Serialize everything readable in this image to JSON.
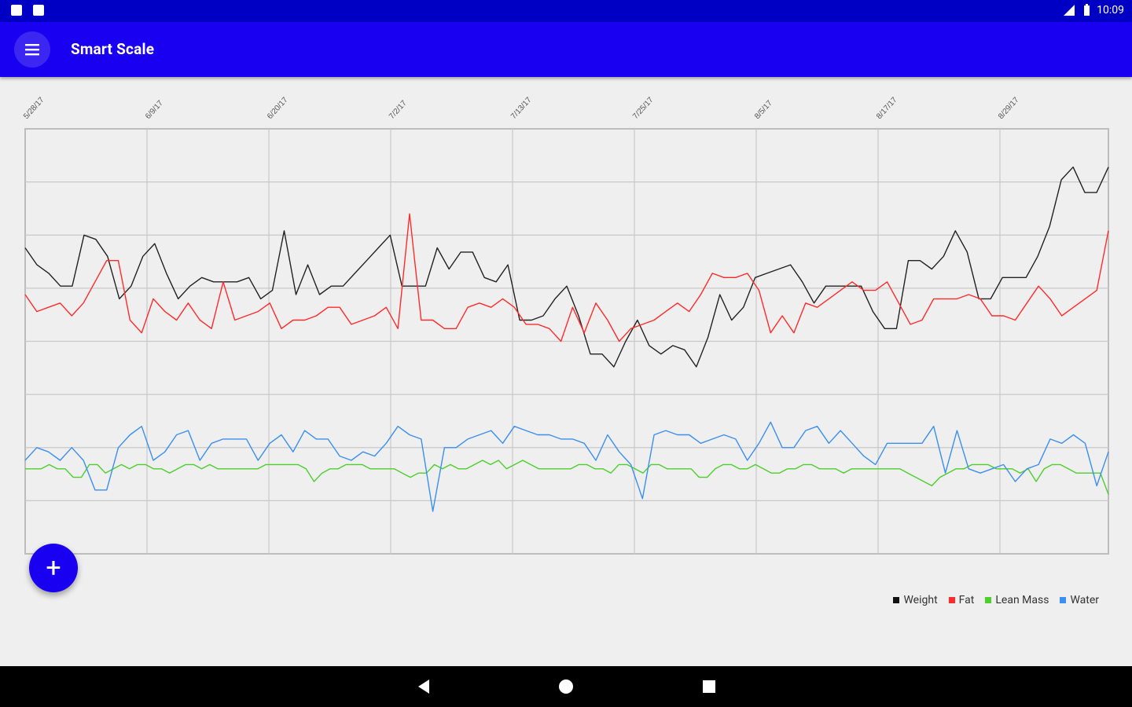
{
  "status_bar": {
    "time": "10:09",
    "icons": [
      "sim-icon",
      "notification-icon",
      "signal-icon",
      "battery-icon"
    ]
  },
  "app_bar": {
    "title": "Smart Scale",
    "menu_icon": "menu-icon"
  },
  "fab": {
    "label": "+",
    "icon": "add-icon"
  },
  "nav_bar": {
    "icons": [
      "back-icon",
      "home-icon",
      "recents-icon"
    ]
  },
  "chart_data": {
    "type": "line",
    "x_tick_labels": [
      "5/28/17",
      "6/9/17",
      "6/20/17",
      "7/2/17",
      "7/13/17",
      "7/25/17",
      "8/5/17",
      "8/17/17",
      "8/29/17"
    ],
    "grid": true,
    "legend_position": "bottom-right",
    "series": [
      {
        "name": "Weight",
        "color": "#222222",
        "values": [
          0.28,
          0.32,
          0.34,
          0.37,
          0.37,
          0.25,
          0.26,
          0.3,
          0.4,
          0.37,
          0.3,
          0.27,
          0.34,
          0.4,
          0.37,
          0.35,
          0.36,
          0.36,
          0.36,
          0.35,
          0.4,
          0.38,
          0.24,
          0.39,
          0.32,
          0.39,
          0.37,
          0.37,
          0.34,
          0.31,
          0.28,
          0.25,
          0.37,
          0.37,
          0.37,
          0.28,
          0.33,
          0.29,
          0.29,
          0.35,
          0.36,
          0.32,
          0.45,
          0.45,
          0.44,
          0.4,
          0.37,
          0.44,
          0.53,
          0.53,
          0.56,
          0.5,
          0.45,
          0.51,
          0.53,
          0.51,
          0.52,
          0.56,
          0.49,
          0.39,
          0.45,
          0.42,
          0.35,
          0.34,
          0.33,
          0.32,
          0.36,
          0.41,
          0.37,
          0.37,
          0.37,
          0.37,
          0.43,
          0.47,
          0.47,
          0.31,
          0.31,
          0.33,
          0.3,
          0.24,
          0.29,
          0.4,
          0.4,
          0.35,
          0.35,
          0.35,
          0.3,
          0.23,
          0.12,
          0.09,
          0.15,
          0.15,
          0.09
        ]
      },
      {
        "name": "Fat",
        "color": "#ff2a2a",
        "values": [
          0.39,
          0.43,
          0.42,
          0.41,
          0.44,
          0.41,
          0.36,
          0.31,
          0.31,
          0.45,
          0.48,
          0.4,
          0.43,
          0.45,
          0.41,
          0.45,
          0.47,
          0.36,
          0.45,
          0.44,
          0.43,
          0.41,
          0.47,
          0.45,
          0.45,
          0.44,
          0.42,
          0.42,
          0.46,
          0.45,
          0.44,
          0.42,
          0.47,
          0.2,
          0.45,
          0.45,
          0.47,
          0.47,
          0.42,
          0.41,
          0.42,
          0.4,
          0.42,
          0.46,
          0.46,
          0.47,
          0.5,
          0.42,
          0.48,
          0.41,
          0.45,
          0.5,
          0.47,
          0.46,
          0.45,
          0.43,
          0.41,
          0.43,
          0.39,
          0.34,
          0.35,
          0.35,
          0.34,
          0.38,
          0.48,
          0.44,
          0.48,
          0.41,
          0.42,
          0.4,
          0.38,
          0.36,
          0.38,
          0.38,
          0.36,
          0.41,
          0.46,
          0.45,
          0.4,
          0.4,
          0.4,
          0.39,
          0.4,
          0.44,
          0.44,
          0.45,
          0.41,
          0.37,
          0.4,
          0.44,
          0.42,
          0.4,
          0.38,
          0.24
        ]
      },
      {
        "name": "Lean Mass",
        "color": "#4ccf2a",
        "values": [
          0.8,
          0.8,
          0.8,
          0.79,
          0.8,
          0.8,
          0.82,
          0.82,
          0.79,
          0.79,
          0.81,
          0.8,
          0.79,
          0.8,
          0.79,
          0.79,
          0.8,
          0.8,
          0.81,
          0.8,
          0.79,
          0.79,
          0.8,
          0.79,
          0.8,
          0.8,
          0.8,
          0.8,
          0.8,
          0.8,
          0.79,
          0.79,
          0.79,
          0.79,
          0.79,
          0.8,
          0.83,
          0.81,
          0.8,
          0.8,
          0.79,
          0.79,
          0.79,
          0.8,
          0.8,
          0.8,
          0.8,
          0.81,
          0.82,
          0.81,
          0.81,
          0.79,
          0.8,
          0.79,
          0.8,
          0.8,
          0.79,
          0.78,
          0.79,
          0.78,
          0.8,
          0.79,
          0.78,
          0.79,
          0.8,
          0.8,
          0.8,
          0.8,
          0.8,
          0.79,
          0.79,
          0.8,
          0.8,
          0.81,
          0.79,
          0.79,
          0.8,
          0.81,
          0.79,
          0.79,
          0.8,
          0.8,
          0.8,
          0.8,
          0.82,
          0.82,
          0.8,
          0.79,
          0.79,
          0.8,
          0.8,
          0.79,
          0.8,
          0.81,
          0.81,
          0.8,
          0.8,
          0.79,
          0.79,
          0.8,
          0.8,
          0.8,
          0.81,
          0.8,
          0.8,
          0.8,
          0.8,
          0.8,
          0.8,
          0.8,
          0.81,
          0.82,
          0.83,
          0.84,
          0.82,
          0.81,
          0.8,
          0.8,
          0.79,
          0.79,
          0.79,
          0.8,
          0.8,
          0.8,
          0.81,
          0.8,
          0.83,
          0.8,
          0.79,
          0.79,
          0.8,
          0.81,
          0.81,
          0.81,
          0.81,
          0.86
        ]
      },
      {
        "name": "Water",
        "color": "#3a8ff0",
        "values": [
          0.78,
          0.75,
          0.76,
          0.78,
          0.75,
          0.78,
          0.85,
          0.85,
          0.75,
          0.72,
          0.7,
          0.78,
          0.76,
          0.72,
          0.71,
          0.78,
          0.74,
          0.73,
          0.73,
          0.73,
          0.78,
          0.74,
          0.72,
          0.76,
          0.71,
          0.73,
          0.73,
          0.77,
          0.78,
          0.76,
          0.77,
          0.74,
          0.7,
          0.72,
          0.73,
          0.9,
          0.75,
          0.75,
          0.73,
          0.72,
          0.71,
          0.74,
          0.7,
          0.71,
          0.72,
          0.72,
          0.73,
          0.73,
          0.74,
          0.78,
          0.72,
          0.76,
          0.79,
          0.87,
          0.72,
          0.71,
          0.72,
          0.72,
          0.74,
          0.73,
          0.72,
          0.73,
          0.78,
          0.74,
          0.69,
          0.75,
          0.75,
          0.71,
          0.7,
          0.74,
          0.71,
          0.74,
          0.77,
          0.79,
          0.74,
          0.74,
          0.74,
          0.74,
          0.7,
          0.81,
          0.71,
          0.8,
          0.81,
          0.8,
          0.79,
          0.83,
          0.8,
          0.79,
          0.73,
          0.74,
          0.72,
          0.74,
          0.84,
          0.76
        ]
      }
    ]
  },
  "legend": [
    {
      "label": "Weight",
      "color": "#111111"
    },
    {
      "label": "Fat",
      "color": "#ff2a2a"
    },
    {
      "label": "Lean Mass",
      "color": "#4ccf2a"
    },
    {
      "label": "Water",
      "color": "#3a8ff0"
    }
  ]
}
